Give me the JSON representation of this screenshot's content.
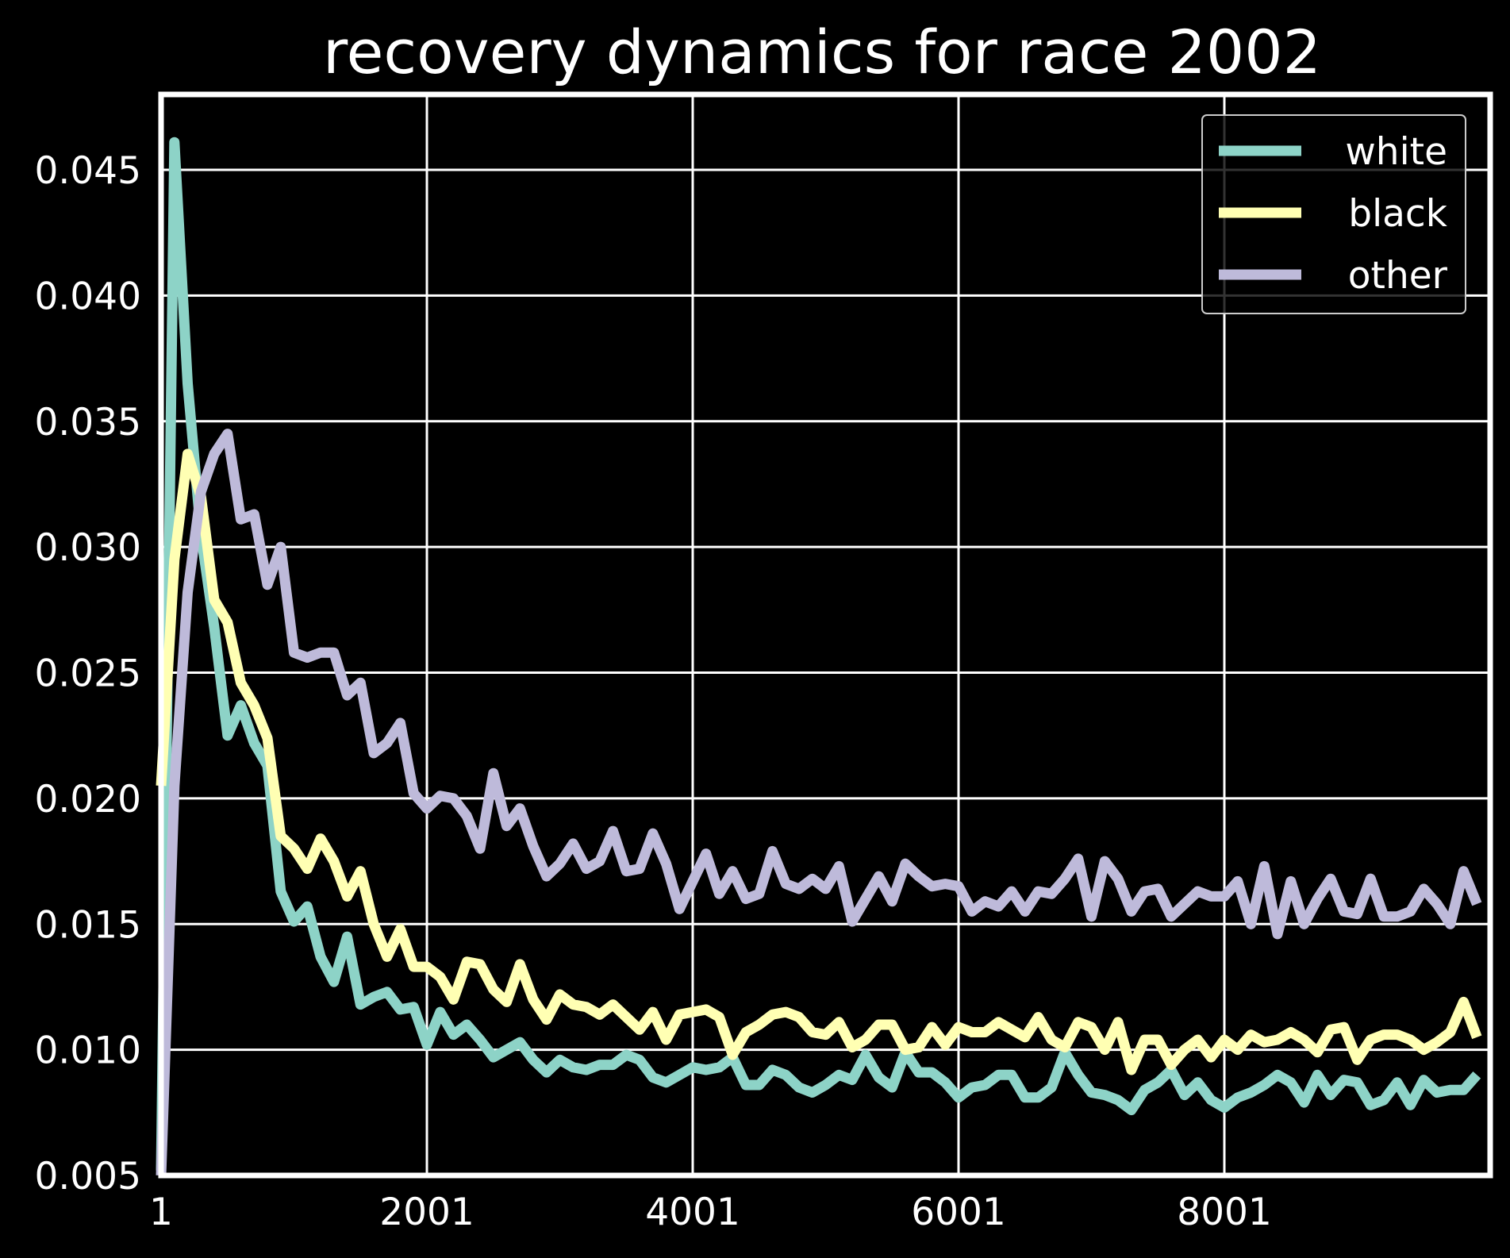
{
  "chart_data": {
    "type": "line",
    "title": "recovery dynamics for race 2002",
    "xlabel": "",
    "ylabel": "",
    "xlim": [
      1,
      10001
    ],
    "ylim": [
      0.005,
      0.048
    ],
    "x_ticks": [
      1,
      2001,
      4001,
      6001,
      8001
    ],
    "x_tick_labels": [
      "1",
      "2001",
      "4001",
      "6001",
      "8001"
    ],
    "y_ticks": [
      0.005,
      0.01,
      0.015,
      0.02,
      0.025,
      0.03,
      0.035,
      0.04,
      0.045
    ],
    "y_tick_labels": [
      "0.005",
      "0.010",
      "0.015",
      "0.020",
      "0.025",
      "0.030",
      "0.035",
      "0.040",
      "0.045"
    ],
    "grid": true,
    "legend_position": "top-right",
    "background": "#000000",
    "x": [
      1,
      101,
      201,
      301,
      401,
      501,
      601,
      701,
      801,
      901,
      1001,
      1101,
      1201,
      1301,
      1401,
      1501,
      1601,
      1701,
      1801,
      1901,
      2001,
      2101,
      2201,
      2301,
      2401,
      2501,
      2601,
      2701,
      2801,
      2901,
      3001,
      3101,
      3201,
      3301,
      3401,
      3501,
      3601,
      3701,
      3801,
      3901,
      4001,
      4101,
      4201,
      4301,
      4401,
      4501,
      4601,
      4701,
      4801,
      4901,
      5001,
      5101,
      5201,
      5301,
      5401,
      5501,
      5601,
      5701,
      5801,
      5901,
      6001,
      6101,
      6201,
      6301,
      6401,
      6501,
      6601,
      6701,
      6801,
      6901,
      7001,
      7101,
      7201,
      7301,
      7401,
      7501,
      7601,
      7701,
      7801,
      7901,
      8001,
      8101,
      8201,
      8301,
      8401,
      8501,
      8601,
      8701,
      8801,
      8901,
      9001,
      9101,
      9201,
      9301,
      9401,
      9501,
      9601,
      9701,
      9801,
      9901
    ],
    "series": [
      {
        "name": "white",
        "color": "#8dd3c7",
        "values": [
          0.0052,
          0.0461,
          0.0365,
          0.0305,
          0.0268,
          0.0225,
          0.0237,
          0.0222,
          0.0213,
          0.0163,
          0.0151,
          0.0157,
          0.0137,
          0.0127,
          0.0145,
          0.0118,
          0.0121,
          0.0123,
          0.0116,
          0.0117,
          0.0102,
          0.0115,
          0.0106,
          0.011,
          0.0104,
          0.0097,
          0.01,
          0.0103,
          0.0096,
          0.0091,
          0.0096,
          0.0093,
          0.0092,
          0.0094,
          0.0094,
          0.0098,
          0.0096,
          0.0089,
          0.0087,
          0.009,
          0.0093,
          0.0092,
          0.0093,
          0.0097,
          0.0086,
          0.0086,
          0.0092,
          0.009,
          0.0085,
          0.0083,
          0.0086,
          0.009,
          0.0088,
          0.0098,
          0.0089,
          0.0085,
          0.0099,
          0.0091,
          0.0091,
          0.0087,
          0.0081,
          0.0085,
          0.0086,
          0.009,
          0.009,
          0.0081,
          0.0081,
          0.0085,
          0.0099,
          0.009,
          0.0083,
          0.0082,
          0.008,
          0.0076,
          0.0084,
          0.0087,
          0.0092,
          0.0082,
          0.0087,
          0.008,
          0.0077,
          0.0081,
          0.0083,
          0.0086,
          0.009,
          0.0087,
          0.0079,
          0.009,
          0.0082,
          0.0088,
          0.0087,
          0.0078,
          0.008,
          0.0087,
          0.0078,
          0.0088,
          0.0083,
          0.0084,
          0.0084,
          0.009
        ]
      },
      {
        "name": "black",
        "color": "#ffffb3",
        "values": [
          0.0205,
          0.0295,
          0.0337,
          0.032,
          0.0279,
          0.027,
          0.0246,
          0.0237,
          0.0224,
          0.0185,
          0.018,
          0.0172,
          0.0184,
          0.0175,
          0.0161,
          0.0171,
          0.015,
          0.0137,
          0.0148,
          0.0133,
          0.0133,
          0.0129,
          0.012,
          0.0135,
          0.0134,
          0.0124,
          0.0119,
          0.0134,
          0.012,
          0.0112,
          0.0122,
          0.0118,
          0.0117,
          0.0114,
          0.0118,
          0.0113,
          0.0108,
          0.0115,
          0.0104,
          0.0114,
          0.0115,
          0.0116,
          0.0113,
          0.0098,
          0.0107,
          0.011,
          0.0114,
          0.0115,
          0.0113,
          0.0107,
          0.0106,
          0.0111,
          0.0101,
          0.0104,
          0.011,
          0.011,
          0.01,
          0.0101,
          0.0109,
          0.0102,
          0.0109,
          0.0107,
          0.0107,
          0.0111,
          0.0108,
          0.0105,
          0.0113,
          0.0104,
          0.0101,
          0.0111,
          0.0109,
          0.01,
          0.0111,
          0.0092,
          0.0104,
          0.0104,
          0.0094,
          0.01,
          0.0104,
          0.0097,
          0.0104,
          0.01,
          0.0106,
          0.0103,
          0.0104,
          0.0107,
          0.0104,
          0.0099,
          0.0108,
          0.0109,
          0.0096,
          0.0104,
          0.0106,
          0.0106,
          0.0104,
          0.01,
          0.0103,
          0.0107,
          0.0119,
          0.0105
        ]
      },
      {
        "name": "other",
        "color": "#bebada",
        "values": [
          0.005,
          0.0205,
          0.0282,
          0.0322,
          0.0337,
          0.0345,
          0.0311,
          0.0313,
          0.0285,
          0.03,
          0.0258,
          0.0256,
          0.0258,
          0.0258,
          0.0241,
          0.0246,
          0.0218,
          0.0222,
          0.023,
          0.0202,
          0.0196,
          0.0201,
          0.02,
          0.0193,
          0.018,
          0.021,
          0.0189,
          0.0196,
          0.0181,
          0.0169,
          0.0174,
          0.0182,
          0.0172,
          0.0175,
          0.0187,
          0.0171,
          0.0172,
          0.0186,
          0.0174,
          0.0156,
          0.0167,
          0.0178,
          0.0162,
          0.0171,
          0.016,
          0.0162,
          0.0179,
          0.0166,
          0.0164,
          0.0168,
          0.0164,
          0.0173,
          0.0151,
          0.016,
          0.0169,
          0.0159,
          0.0174,
          0.0169,
          0.0165,
          0.0166,
          0.0165,
          0.0155,
          0.0159,
          0.0157,
          0.0163,
          0.0155,
          0.0163,
          0.0162,
          0.0168,
          0.0176,
          0.0153,
          0.0175,
          0.0168,
          0.0155,
          0.0163,
          0.0164,
          0.0153,
          0.0158,
          0.0163,
          0.0161,
          0.0161,
          0.0167,
          0.015,
          0.0173,
          0.0146,
          0.0167,
          0.015,
          0.016,
          0.0168,
          0.0155,
          0.0154,
          0.0168,
          0.0153,
          0.0153,
          0.0155,
          0.0164,
          0.0158,
          0.015,
          0.0171,
          0.0158
        ]
      }
    ]
  }
}
